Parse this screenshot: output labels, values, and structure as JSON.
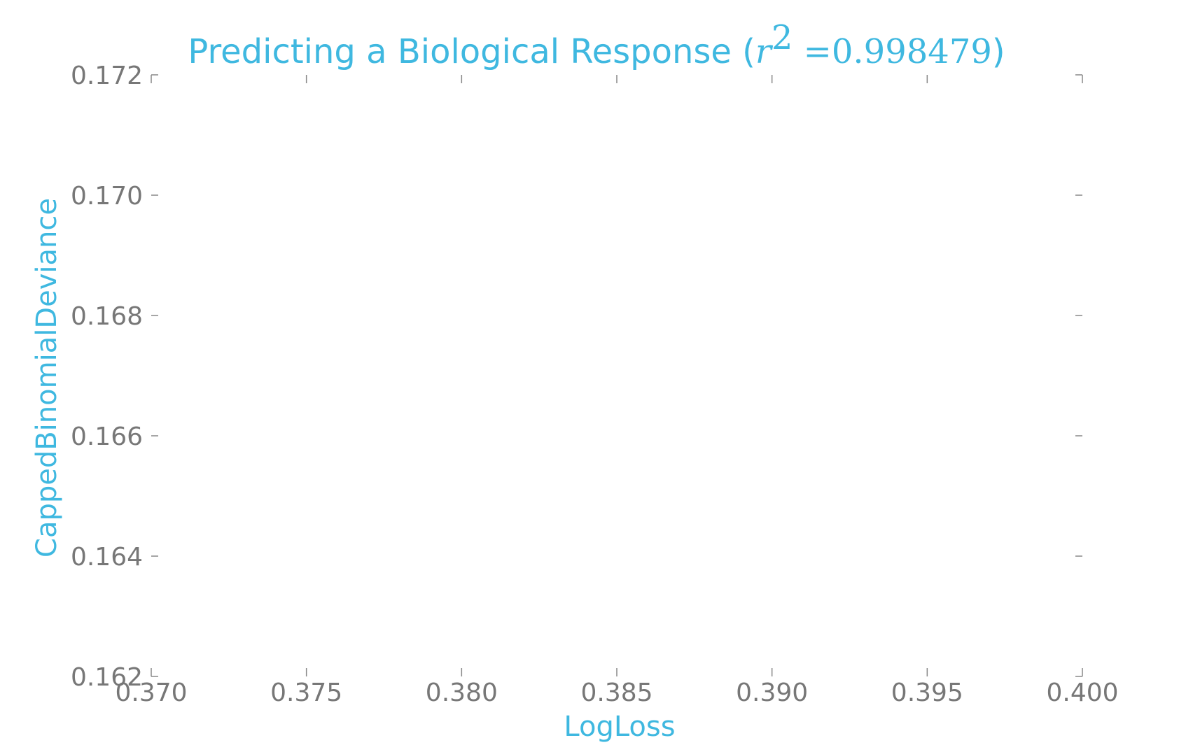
{
  "chart_data": {
    "type": "scatter",
    "title": {
      "prefix": "Predicting a Biological Response (",
      "var": "r",
      "exp": "2",
      "eq": " =0.998479",
      "suffix": ")"
    },
    "xlabel": "LogLoss",
    "ylabel": "CappedBinomialDeviance",
    "xlim": [
      0.37,
      0.4
    ],
    "ylim": [
      0.162,
      0.172
    ],
    "xticks": [
      "0.370",
      "0.375",
      "0.380",
      "0.385",
      "0.390",
      "0.395",
      "0.400"
    ],
    "yticks": [
      "0.162",
      "0.164",
      "0.166",
      "0.168",
      "0.170",
      "0.172"
    ],
    "grid": false,
    "series": [
      {
        "x": [],
        "y": []
      }
    ]
  },
  "colors": {
    "accent": "#3fb8e0",
    "tick_text": "#777777",
    "tick_mark": "#888888"
  }
}
